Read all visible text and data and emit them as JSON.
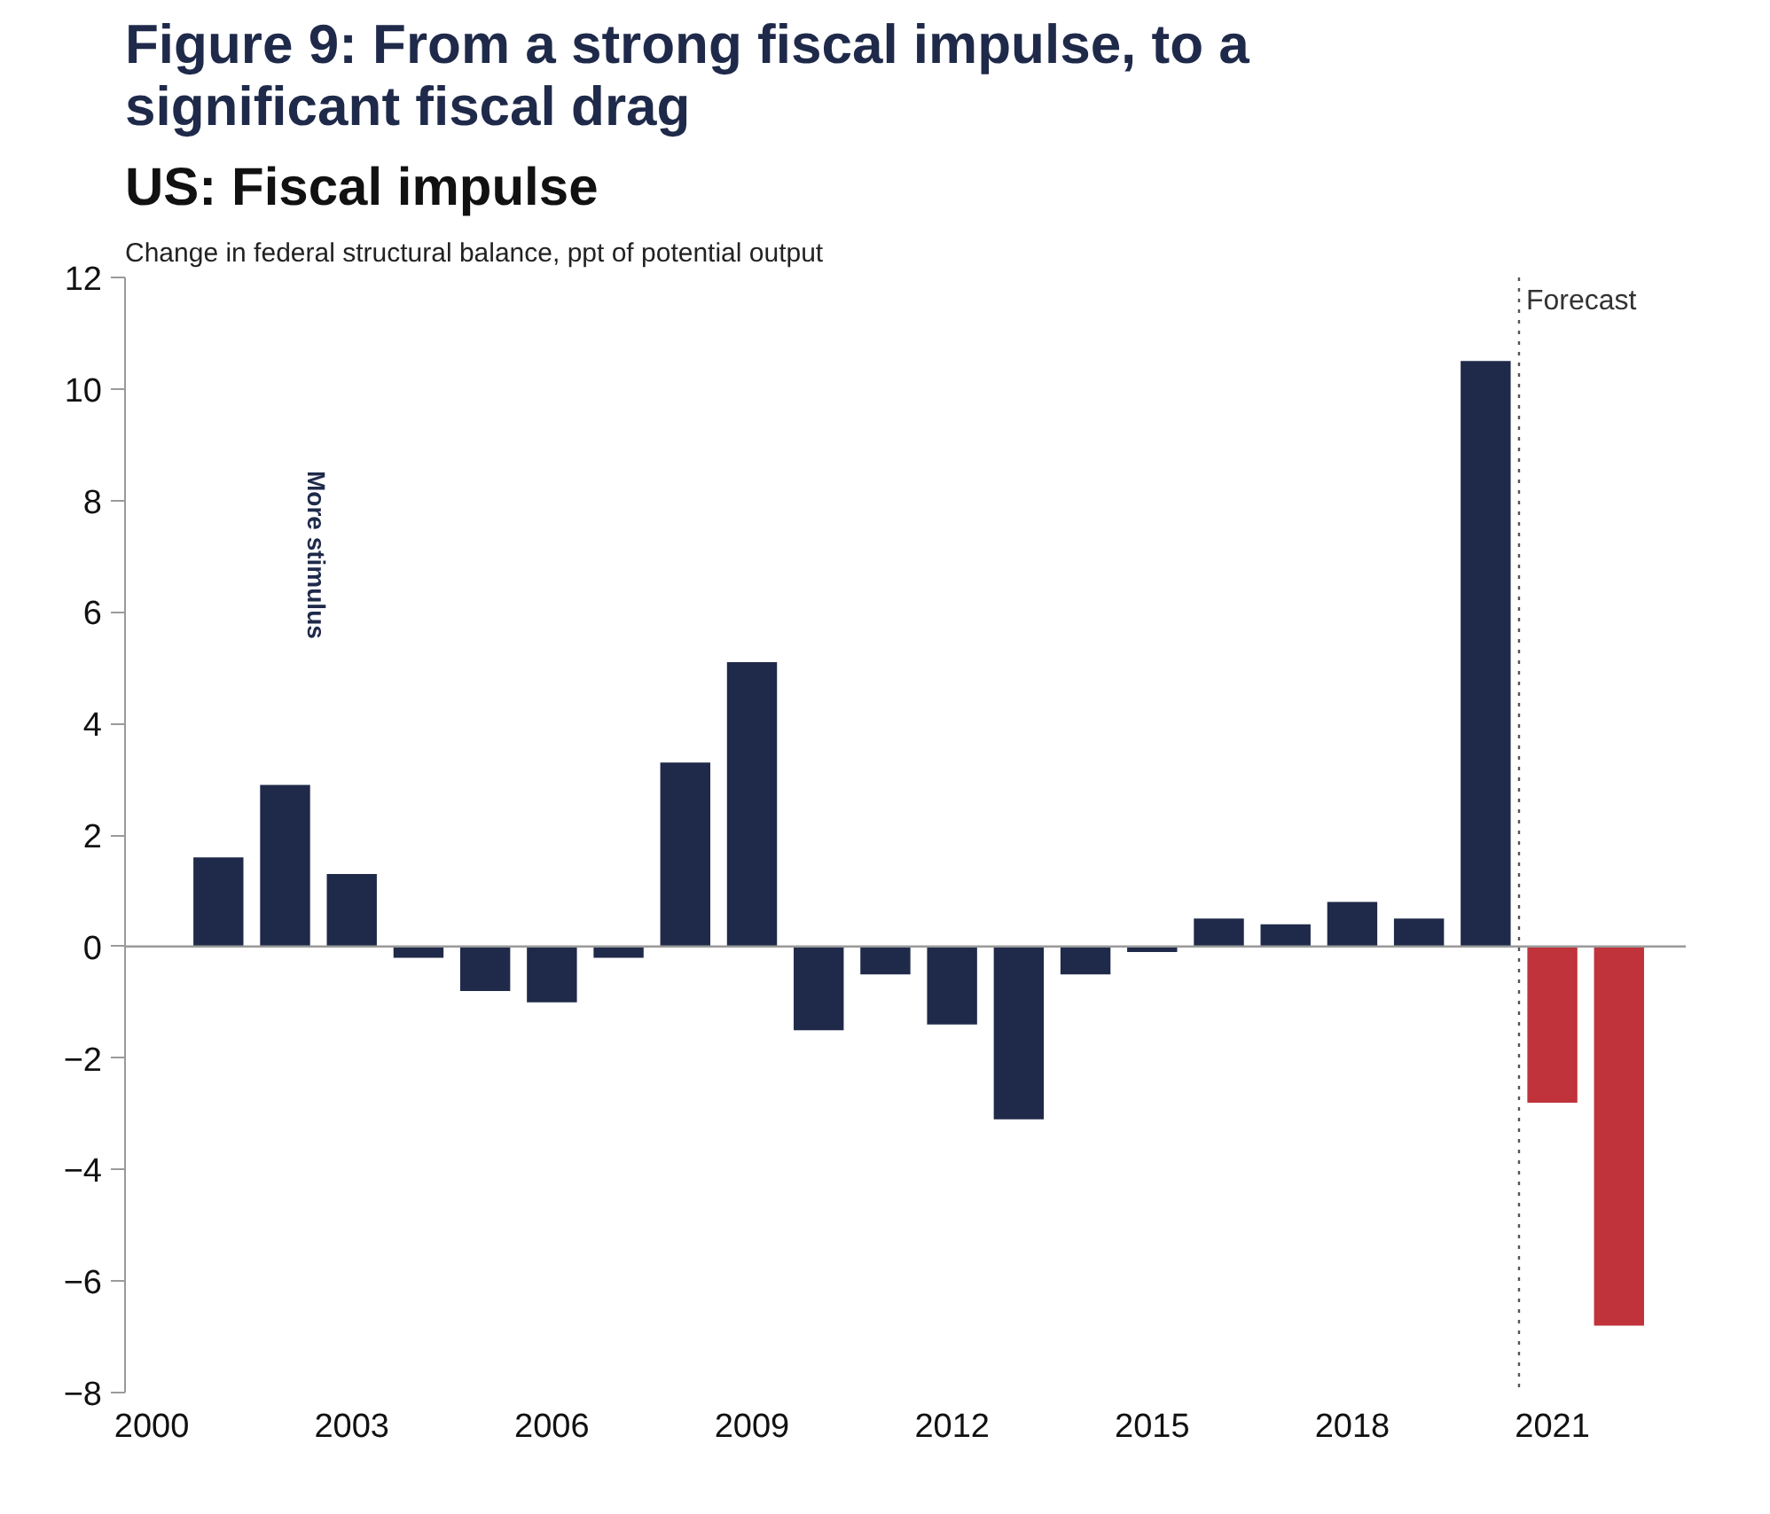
{
  "chart_data": {
    "type": "bar",
    "title": "Figure 9: From a strong fiscal impulse, to a significant fiscal drag",
    "subtitle": "US: Fiscal impulse",
    "ylabel": "Change in federal structural balance, ppt of potential output",
    "x": [
      2001,
      2002,
      2003,
      2004,
      2005,
      2006,
      2007,
      2008,
      2009,
      2010,
      2011,
      2012,
      2013,
      2014,
      2015,
      2016,
      2017,
      2018,
      2019,
      2020,
      2021,
      2022
    ],
    "values": [
      1.6,
      2.9,
      1.3,
      -0.2,
      -0.8,
      -1.0,
      -0.2,
      3.3,
      5.1,
      -1.5,
      -0.5,
      -1.4,
      -3.1,
      -0.5,
      -0.1,
      0.5,
      0.4,
      0.8,
      0.5,
      10.5,
      -2.8,
      -6.8
    ],
    "colors": [
      "#1f2a4a",
      "#1f2a4a",
      "#1f2a4a",
      "#1f2a4a",
      "#1f2a4a",
      "#1f2a4a",
      "#1f2a4a",
      "#1f2a4a",
      "#1f2a4a",
      "#1f2a4a",
      "#1f2a4a",
      "#1f2a4a",
      "#1f2a4a",
      "#1f2a4a",
      "#1f2a4a",
      "#1f2a4a",
      "#1f2a4a",
      "#1f2a4a",
      "#1f2a4a",
      "#1f2a4a",
      "#c0333a",
      "#c0333a"
    ],
    "xlim": [
      1999.6,
      2023.0
    ],
    "xticks": [
      2000,
      2003,
      2006,
      2009,
      2012,
      2015,
      2018,
      2021
    ],
    "ylim": [
      -8,
      12
    ],
    "yticks": [
      -8,
      -6,
      -4,
      -2,
      0,
      2,
      4,
      6,
      8,
      10,
      12
    ],
    "ref_lines": [
      {
        "axis": "x",
        "value": 2020.5,
        "label": "Forecast",
        "line_style": "dotted",
        "color": "#555555"
      },
      {
        "axis": "y",
        "value": 0,
        "color": "#9a9a9a",
        "line_style": "solid"
      }
    ],
    "annotations": [
      "More stimulus"
    ],
    "grid": false
  }
}
